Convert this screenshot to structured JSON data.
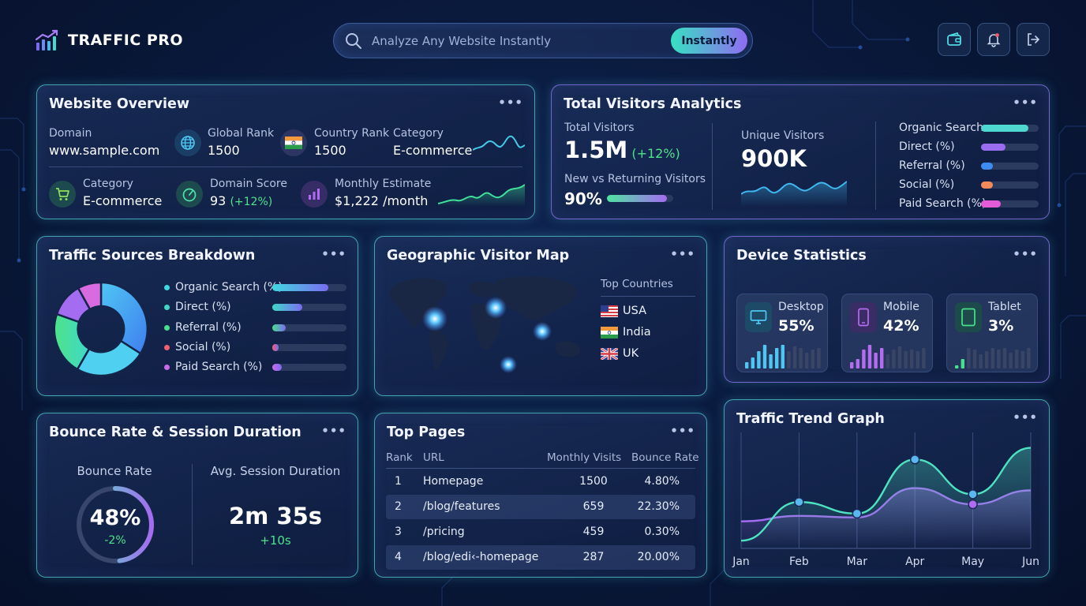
{
  "header": {
    "brand": "TRAFFIC PRO",
    "search": {
      "placeholder": "Analyze Any Website Instantly",
      "button_label": "Instantly"
    },
    "actions": [
      "wallet-icon",
      "bell-icon",
      "logout-icon"
    ]
  },
  "website_overview": {
    "title": "Website Overview",
    "domain": {
      "label": "Domain",
      "value": "www.sample.com"
    },
    "global_rank": {
      "label": "Global Rank",
      "value": "1500"
    },
    "country_rank": {
      "label": "Country Rank",
      "value": "1500"
    },
    "category_top": {
      "label": "Category",
      "value": "E-commerce"
    },
    "category": {
      "label": "Category",
      "value": "E-commerce"
    },
    "domain_score": {
      "label": "Domain Score",
      "value": "93",
      "change": "(+12%)"
    },
    "monthly_estimate": {
      "label": "Monthly Estimate",
      "value": "$1,222 /month"
    }
  },
  "visitors": {
    "title": "Total Visitors Analytics",
    "total": {
      "label": "Total Visitors",
      "value": "1.5M",
      "change": "(+12%)"
    },
    "new_vs_returning": {
      "label": "New vs Returning Visitors",
      "value": "90%",
      "level": 0.9
    },
    "unique": {
      "label": "Unique Visitors",
      "value": "900K"
    },
    "sources": [
      {
        "label": "Organic Search",
        "level": 0.82,
        "color": "#4fd8d0"
      },
      {
        "label": "Direct (%)",
        "level": 0.42,
        "color": "#9a6cf0"
      },
      {
        "label": "Referral (%)",
        "level": 0.2,
        "color": "#3f8cf0"
      },
      {
        "label": "Social (%)",
        "level": 0.2,
        "color": "#f38a5a"
      },
      {
        "label": "Paid Search (%)",
        "level": 0.34,
        "color": "#e35bd6"
      }
    ]
  },
  "traffic_sources": {
    "title": "Traffic Sources Breakdown",
    "items": [
      {
        "label": "Organic Search (%)",
        "level": 0.75,
        "color": "#3fd8e0"
      },
      {
        "label": "Direct (%)",
        "level": 0.4,
        "color": "#3fd8c8"
      },
      {
        "label": "Referral (%)",
        "level": 0.18,
        "color": "#48e08c"
      },
      {
        "label": "Social (%)",
        "level": 0.09,
        "color": "#f06070"
      },
      {
        "label": "Paid Search (%)",
        "level": 0.13,
        "color": "#c86be8"
      }
    ]
  },
  "geo": {
    "title": "Geographic Visitor Map",
    "top_countries_label": "Top Countries",
    "countries": [
      "USA",
      "India",
      "UK"
    ]
  },
  "devices": {
    "title": "Device Statistics",
    "items": [
      {
        "label": "Desktop",
        "value": "55%",
        "icon": "monitor-icon",
        "color": "#4fc6f2"
      },
      {
        "label": "Mobile",
        "value": "42%",
        "icon": "smartphone-icon",
        "color": "#b56cf0"
      },
      {
        "label": "Tablet",
        "value": "3%",
        "icon": "tablet-icon",
        "color": "#48e08c"
      }
    ]
  },
  "bounce": {
    "title": "Bounce Rate & Session Duration",
    "bounce_label": "Bounce Rate",
    "bounce_value": "48%",
    "bounce_level": 0.48,
    "bounce_change": "-2%",
    "session_label": "Avg. Session Duration",
    "session_value": "2m 35s",
    "session_change": "+10s"
  },
  "top_pages": {
    "title": "Top Pages",
    "columns": [
      "Rank",
      "URL",
      "Monthly Visits",
      "Bounce Rate"
    ],
    "rows": [
      [
        "1",
        "Homepage",
        "1500",
        "4.80%"
      ],
      [
        "2",
        "/blog/features",
        "659",
        "22.30%"
      ],
      [
        "3",
        "/pricing",
        "459",
        "0.30%"
      ],
      [
        "4",
        "/blog/edi‹-homepage",
        "287",
        "20.00%"
      ]
    ]
  },
  "trend": {
    "title": "Traffic Trend Graph"
  },
  "chart_data": {
    "type": "line",
    "title": "Traffic Trend Graph",
    "categories": [
      "Jan",
      "Feb",
      "Mar",
      "Apr",
      "May",
      "Jun"
    ],
    "series": [
      {
        "values": [
          10,
          60,
          45,
          115,
          70,
          130
        ],
        "color": "#4ee3c0"
      },
      {
        "values": [
          35,
          42,
          40,
          78,
          57,
          75
        ],
        "color": "#a46cf0"
      }
    ],
    "ylim": [
      0,
      150
    ],
    "grid": true
  }
}
